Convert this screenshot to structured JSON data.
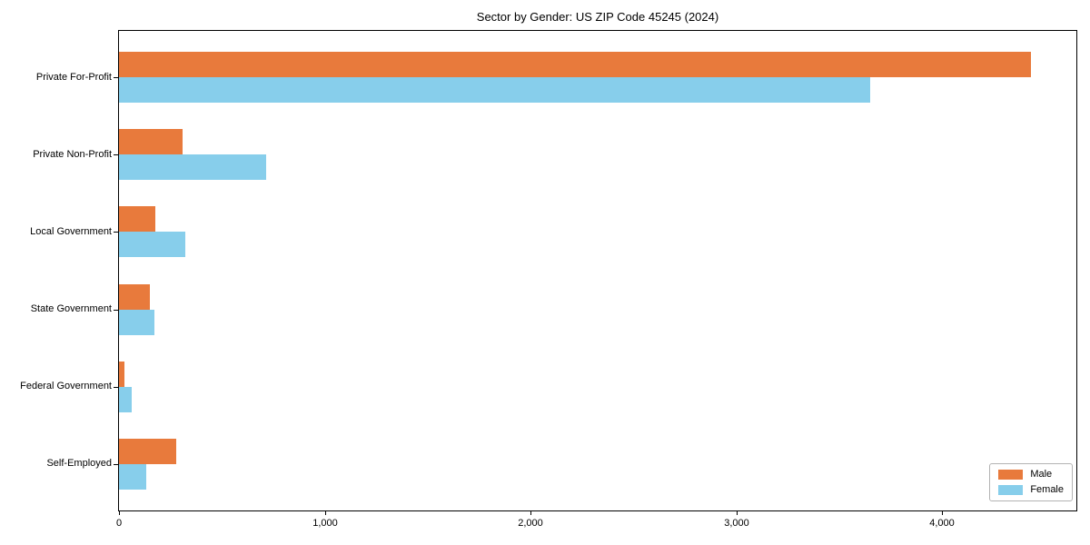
{
  "chart_data": {
    "type": "bar",
    "orientation": "horizontal",
    "title": "Sector by Gender: US ZIP Code 45245 (2024)",
    "categories": [
      "Private For-Profit",
      "Private Non-Profit",
      "Local Government",
      "State Government",
      "Federal Government",
      "Self-Employed"
    ],
    "series": [
      {
        "name": "Male",
        "color": "#e87a3c",
        "values": [
          4430,
          310,
          175,
          150,
          25,
          280
        ]
      },
      {
        "name": "Female",
        "color": "#87ceeb",
        "values": [
          3650,
          715,
          320,
          170,
          60,
          130
        ]
      }
    ],
    "xlabel": "",
    "ylabel": "",
    "xlim": [
      0,
      4652
    ],
    "xticks": [
      0,
      1000,
      2000,
      3000,
      4000
    ],
    "xtick_labels": [
      "0",
      "1,000",
      "2,000",
      "3,000",
      "4,000"
    ],
    "legend_position": "lower right",
    "grid": false
  },
  "colors": {
    "axis": "#000000",
    "text": "#000000",
    "legend_border": "#b3b3b3",
    "background": "#ffffff"
  }
}
